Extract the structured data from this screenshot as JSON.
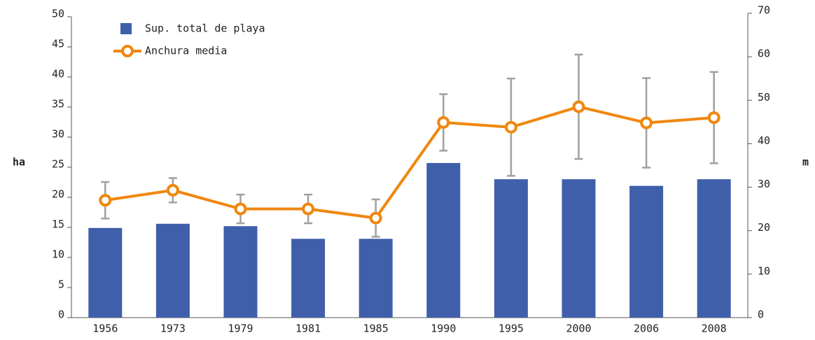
{
  "chart_data": {
    "type": "bar_line",
    "categories": [
      "1956",
      "1973",
      "1979",
      "1981",
      "1985",
      "1990",
      "1995",
      "2000",
      "2006",
      "2008"
    ],
    "ylabel": "ha",
    "y2label": "m",
    "ylim": [
      0,
      50
    ],
    "yticks": [
      0,
      5,
      10,
      15,
      20,
      25,
      30,
      35,
      40,
      45,
      50
    ],
    "y2lim": [
      0,
      70
    ],
    "y2ticks": [
      0,
      10,
      20,
      30,
      40,
      50,
      60,
      70
    ],
    "legend": "upper left",
    "series": [
      {
        "name": "Sup. total de playa",
        "type": "bar",
        "color": "#3f5faa",
        "values": [
          14.9,
          15.6,
          15.2,
          13.1,
          13.1,
          25.7,
          23.0,
          23.0,
          21.9,
          23.0
        ]
      },
      {
        "name": "Anchura media",
        "type": "line",
        "axis": "y2",
        "color": "#f0870f",
        "values": [
          27.0,
          29.3,
          25.0,
          25.0,
          22.9,
          44.9,
          43.8,
          48.5,
          44.8,
          46.0
        ],
        "errors": [
          4.2,
          2.8,
          3.3,
          3.3,
          4.3,
          6.5,
          11.2,
          12.0,
          10.3,
          10.5
        ],
        "error_color": "#a0a0a0"
      }
    ]
  }
}
